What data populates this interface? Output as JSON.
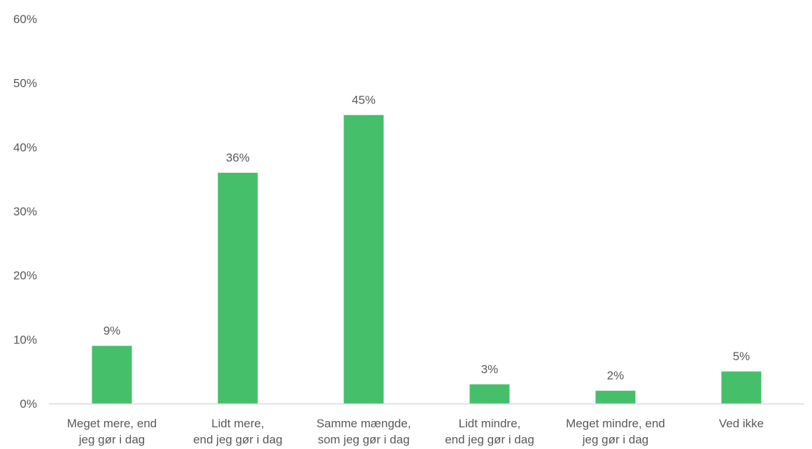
{
  "chart_data": {
    "type": "bar",
    "categories": [
      [
        "Meget mere, end",
        "jeg gør i dag"
      ],
      [
        "Lidt mere,",
        "end jeg gør i dag"
      ],
      [
        "Samme mængde,",
        "som jeg gør i dag"
      ],
      [
        "Lidt mindre,",
        "end jeg gør i dag"
      ],
      [
        "Meget mindre, end",
        "jeg gør i dag"
      ],
      [
        "Ved ikke"
      ]
    ],
    "values": [
      9,
      36,
      45,
      3,
      2,
      5
    ],
    "data_labels": [
      "9%",
      "36%",
      "45%",
      "3%",
      "2%",
      "5%"
    ],
    "ylim": [
      0,
      60
    ],
    "yticks": [
      0,
      10,
      20,
      30,
      40,
      50,
      60
    ],
    "ytick_labels": [
      "0%",
      "10%",
      "20%",
      "30%",
      "40%",
      "50%",
      "60%"
    ],
    "grid": false,
    "legend": "none",
    "colors": {
      "bar": "#46bf6a",
      "axis": "#d9d9d9",
      "text": "#595959"
    }
  }
}
